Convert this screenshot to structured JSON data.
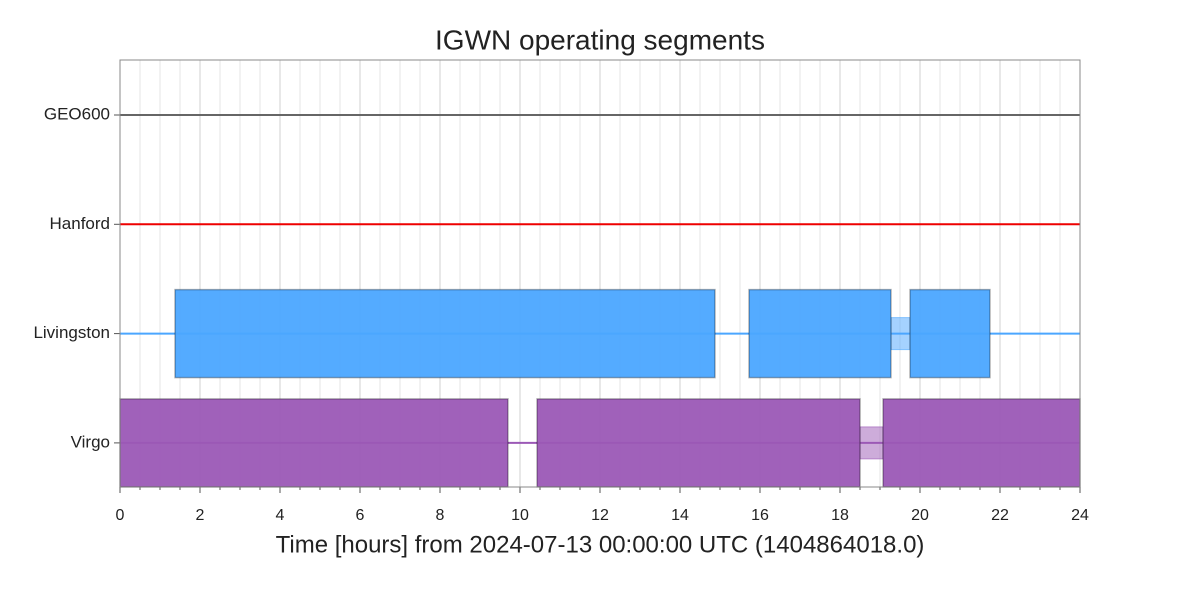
{
  "chart_data": {
    "type": "segments",
    "title": "IGWN operating segments",
    "xlabel": "Time [hours] from 2024-07-13 00:00:00 UTC (1404864018.0)",
    "xlim": [
      0,
      24
    ],
    "xticks": [
      0,
      2,
      4,
      6,
      8,
      10,
      12,
      14,
      16,
      18,
      20,
      22,
      24
    ],
    "x_minor_ticks": [
      0.5,
      1,
      1.5,
      2.5,
      3,
      3.5,
      4.5,
      5,
      5.5,
      6.5,
      7,
      7.5,
      8.5,
      9,
      9.5,
      10.5,
      11,
      11.5,
      12.5,
      13,
      13.5,
      14.5,
      15,
      15.5,
      16.5,
      17,
      17.5,
      18.5,
      19,
      19.5,
      20.5,
      21,
      21.5,
      22.5,
      23,
      23.5
    ],
    "grid": true,
    "series": [
      {
        "name": "GEO600",
        "color": "#666666",
        "known": [
          [
            0,
            24
          ]
        ],
        "active": [],
        "flagged": []
      },
      {
        "name": "Hanford",
        "color": "#ee0000",
        "known": [
          [
            0,
            24
          ]
        ],
        "active": [],
        "flagged": []
      },
      {
        "name": "Livingston",
        "color": "#4ba6ff",
        "known": [
          [
            0,
            24
          ]
        ],
        "active": [
          [
            1.375,
            14.875
          ],
          [
            15.725,
            19.275
          ],
          [
            19.75,
            21.75
          ]
        ],
        "flagged": [
          [
            19.275,
            19.75
          ]
        ]
      },
      {
        "name": "Virgo",
        "color": "#9b59b6",
        "known": [
          [
            0,
            24
          ]
        ],
        "active": [
          [
            0,
            9.7
          ],
          [
            10.425,
            18.5
          ],
          [
            19.075,
            24
          ]
        ],
        "flagged": [
          [
            18.5,
            19.075
          ]
        ]
      }
    ]
  }
}
